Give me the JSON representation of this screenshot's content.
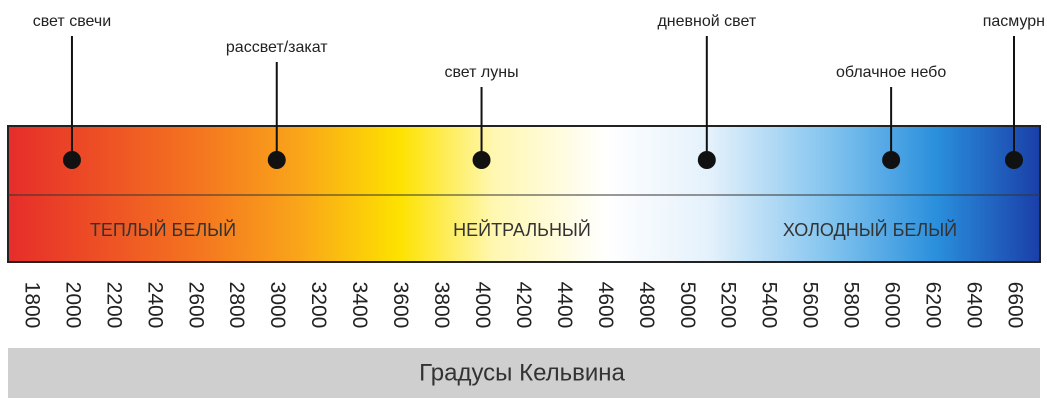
{
  "title_markers": [
    {
      "label": "свет свечи",
      "kelvin": 2000
    },
    {
      "label": "рассвет/закат",
      "kelvin": 3000
    },
    {
      "label": "свет луны",
      "kelvin": 4000
    },
    {
      "label": "дневной свет",
      "kelvin": 5100
    },
    {
      "label": "облачное небо",
      "kelvin": 6000
    },
    {
      "label": "пасмурн",
      "kelvin": 6600
    }
  ],
  "zones": [
    "ТЕПЛЫЙ БЕЛЫЙ",
    "НЕЙТРАЛЬНЫЙ",
    "ХОЛОДНЫЙ БЕЛЫЙ"
  ],
  "ticks": [
    1800,
    2000,
    2200,
    2400,
    2600,
    2800,
    3000,
    3200,
    3400,
    3600,
    3800,
    4000,
    4200,
    4400,
    4600,
    4800,
    5000,
    5200,
    5400,
    5600,
    5800,
    6000,
    6200,
    6400,
    6600
  ],
  "caption": "Градусы Кельвина"
}
